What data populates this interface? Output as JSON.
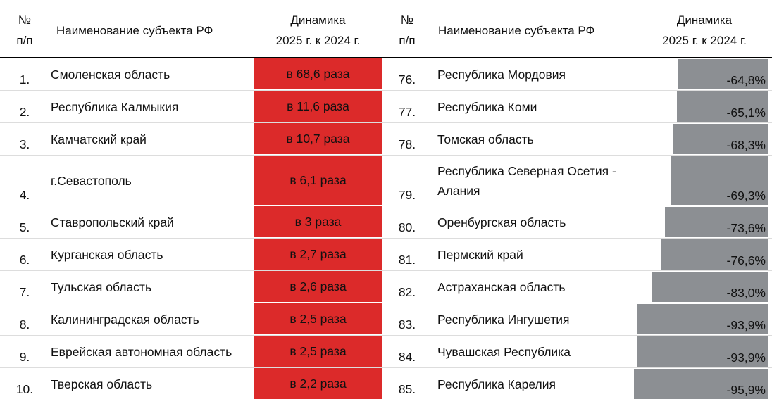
{
  "header": {
    "num_label": [
      "№",
      "п/п"
    ],
    "name_label": "Наименование субъекта РФ",
    "dyn_label": [
      "Динамика",
      "2025 г. к 2024 г."
    ]
  },
  "colors": {
    "increase": "#dc2a2a",
    "decrease": "#8c8f93"
  },
  "left_rows": [
    {
      "num": "1.",
      "name": "Смоленская область",
      "value": "в 68,6 раза"
    },
    {
      "num": "2.",
      "name": "Республика Калмыкия",
      "value": "в 11,6 раза"
    },
    {
      "num": "3.",
      "name": "Камчатский край",
      "value": "в 10,7 раза"
    },
    {
      "num": "4.",
      "name": "г.Севастополь",
      "value": "в 6,1 раза"
    },
    {
      "num": "5.",
      "name": "Ставропольский край",
      "value": "в 3 раза"
    },
    {
      "num": "6.",
      "name": "Курганская область",
      "value": "в 2,7 раза"
    },
    {
      "num": "7.",
      "name": "Тульская область",
      "value": "в 2,6 раза"
    },
    {
      "num": "8.",
      "name": "Калининградская область",
      "value": "в 2,5 раза"
    },
    {
      "num": "9.",
      "name": "Еврейская автономная область",
      "value": "в 2,5 раза"
    },
    {
      "num": "10.",
      "name": "Тверская область",
      "value": "в 2,2 раза"
    }
  ],
  "right_rows": [
    {
      "num": "76.",
      "name": "Республика Мордовия",
      "value": "-64,8%",
      "pct": 64.8
    },
    {
      "num": "77.",
      "name": "Республика Коми",
      "value": "-65,1%",
      "pct": 65.1
    },
    {
      "num": "78.",
      "name": "Томская область",
      "value": "-68,3%",
      "pct": 68.3
    },
    {
      "num": "79.",
      "name": "Республика Северная Осетия - Алания",
      "value": "-69,3%",
      "pct": 69.3
    },
    {
      "num": "80.",
      "name": "Оренбургская область",
      "value": "-73,6%",
      "pct": 73.6
    },
    {
      "num": "81.",
      "name": "Пермский край",
      "value": "-76,6%",
      "pct": 76.6
    },
    {
      "num": "82.",
      "name": "Астраханская область",
      "value": "-83,0%",
      "pct": 83.0
    },
    {
      "num": "83.",
      "name": "Республика Ингушетия",
      "value": "-93,9%",
      "pct": 93.9
    },
    {
      "num": "84.",
      "name": "Чувашская Республика",
      "value": "-93,9%",
      "pct": 93.9
    },
    {
      "num": "85.",
      "name": "Республика Карелия",
      "value": "-95,9%",
      "pct": 95.9
    }
  ]
}
